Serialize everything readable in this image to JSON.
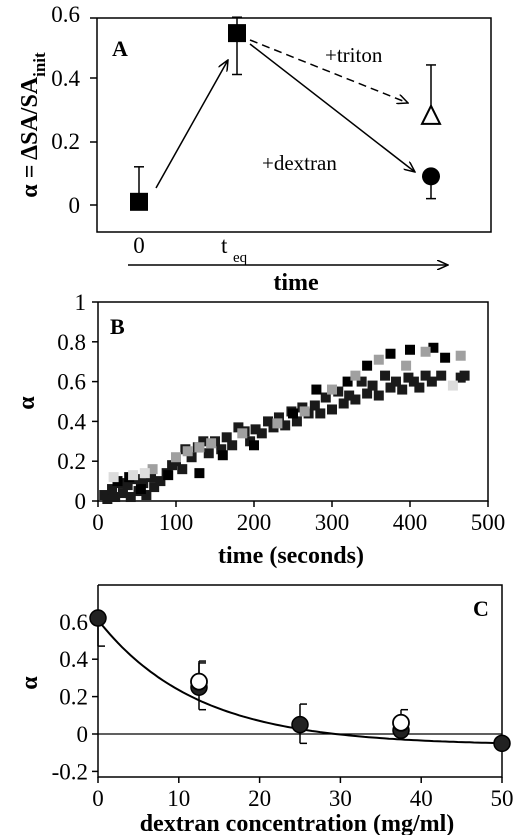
{
  "colors": {
    "black": "#000000",
    "dark": "#1a1a1a",
    "gray": "#a0a0a0",
    "light": "#dcdcdc"
  },
  "chart_data": [
    {
      "panel": "A",
      "type": "scatter",
      "ylabel": "α = ΔSA/SA",
      "ylabel_sub": "init",
      "xlabel": "time",
      "yticks": [
        "0",
        "0.2",
        "0.4",
        "0.6"
      ],
      "xticks": [
        "0",
        "t",
        "eq"
      ],
      "ylim": [
        -0.1,
        0.6
      ],
      "points": [
        {
          "name": "start",
          "y": 0.01,
          "err_hi": 0.12,
          "err_lo": 0.01,
          "marker": "square"
        },
        {
          "name": "teq",
          "y": 0.54,
          "err_hi": 0.59,
          "err_lo": 0.41,
          "marker": "square"
        },
        {
          "name": "triton",
          "y": 0.28,
          "err_hi": 0.44,
          "err_lo": 0.28,
          "marker": "triangle-open"
        },
        {
          "name": "dextran",
          "y": 0.09,
          "err_hi": 0.09,
          "err_lo": 0.02,
          "marker": "circle"
        }
      ],
      "annotations": [
        "+triton",
        "+dextran"
      ]
    },
    {
      "panel": "B",
      "type": "scatter",
      "xlabel": "time (seconds)",
      "ylabel": "α",
      "xlim": [
        0,
        500
      ],
      "ylim": [
        0,
        1
      ],
      "xticks": [
        "0",
        "100",
        "200",
        "300",
        "400",
        "500"
      ],
      "yticks": [
        "0",
        "0.2",
        "0.4",
        "0.6",
        "0.8",
        "1"
      ],
      "series": [
        {
          "color": "dark",
          "points": [
            [
              8,
              0.03
            ],
            [
              12,
              0.01
            ],
            [
              18,
              0.06
            ],
            [
              22,
              0.02
            ],
            [
              28,
              0.09
            ],
            [
              32,
              0.04
            ],
            [
              38,
              0.08
            ],
            [
              42,
              0.02
            ],
            [
              48,
              0.11
            ],
            [
              52,
              0.05
            ],
            [
              58,
              0.09
            ],
            [
              62,
              0.03
            ],
            [
              68,
              0.12
            ],
            [
              72,
              0.07
            ],
            [
              80,
              0.1
            ],
            [
              88,
              0.14
            ],
            [
              95,
              0.18
            ],
            [
              100,
              0.2
            ],
            [
              108,
              0.16
            ],
            [
              112,
              0.26
            ],
            [
              120,
              0.22
            ],
            [
              128,
              0.27
            ],
            [
              135,
              0.3
            ],
            [
              142,
              0.24
            ],
            [
              150,
              0.3
            ],
            [
              158,
              0.26
            ],
            [
              165,
              0.32
            ],
            [
              172,
              0.28
            ],
            [
              180,
              0.37
            ],
            [
              188,
              0.35
            ],
            [
              195,
              0.3
            ],
            [
              202,
              0.36
            ],
            [
              210,
              0.34
            ],
            [
              218,
              0.4
            ],
            [
              225,
              0.37
            ],
            [
              232,
              0.42
            ],
            [
              240,
              0.38
            ],
            [
              248,
              0.45
            ],
            [
              255,
              0.4
            ],
            [
              262,
              0.47
            ],
            [
              270,
              0.44
            ],
            [
              278,
              0.48
            ],
            [
              285,
              0.44
            ],
            [
              292,
              0.52
            ],
            [
              300,
              0.46
            ],
            [
              308,
              0.55
            ],
            [
              315,
              0.49
            ],
            [
              322,
              0.53
            ],
            [
              330,
              0.51
            ],
            [
              338,
              0.6
            ],
            [
              345,
              0.54
            ],
            [
              352,
              0.58
            ],
            [
              360,
              0.53
            ],
            [
              368,
              0.63
            ],
            [
              375,
              0.57
            ],
            [
              382,
              0.6
            ],
            [
              390,
              0.56
            ],
            [
              398,
              0.62
            ],
            [
              405,
              0.6
            ],
            [
              412,
              0.57
            ],
            [
              420,
              0.63
            ],
            [
              428,
              0.6
            ],
            [
              440,
              0.63
            ],
            [
              465,
              0.62
            ],
            [
              470,
              0.63
            ]
          ]
        },
        {
          "color": "black",
          "points": [
            [
              25,
              0.1
            ],
            [
              40,
              0.12
            ],
            [
              55,
              0.06
            ],
            [
              90,
              0.13
            ],
            [
              130,
              0.14
            ],
            [
              160,
              0.23
            ],
            [
              200,
              0.28
            ],
            [
              250,
              0.44
            ],
            [
              280,
              0.56
            ],
            [
              320,
              0.6
            ],
            [
              345,
              0.68
            ],
            [
              375,
              0.74
            ],
            [
              400,
              0.76
            ],
            [
              430,
              0.77
            ],
            [
              445,
              0.72
            ]
          ]
        },
        {
          "color": "gray",
          "points": [
            [
              70,
              0.16
            ],
            [
              100,
              0.22
            ],
            [
              115,
              0.25
            ],
            [
              130,
              0.27
            ],
            [
              145,
              0.29
            ],
            [
              185,
              0.34
            ],
            [
              230,
              0.39
            ],
            [
              265,
              0.45
            ],
            [
              300,
              0.56
            ],
            [
              330,
              0.63
            ],
            [
              360,
              0.71
            ],
            [
              395,
              0.68
            ],
            [
              420,
              0.75
            ],
            [
              465,
              0.73
            ]
          ]
        },
        {
          "color": "light",
          "points": [
            [
              20,
              0.12
            ],
            [
              45,
              0.13
            ],
            [
              60,
              0.14
            ],
            [
              455,
              0.58
            ]
          ]
        }
      ]
    },
    {
      "panel": "C",
      "type": "scatter",
      "xlabel": "dextran concentration (mg/ml)",
      "ylabel": "α",
      "xlim": [
        0,
        50
      ],
      "ylim": [
        -0.2,
        0.7
      ],
      "xticks": [
        "0",
        "10",
        "20",
        "30",
        "40",
        "50"
      ],
      "yticks": [
        "-0.2",
        "0",
        "0.2",
        "0.4",
        "0.6"
      ],
      "fit_curve": {
        "a": 0.67,
        "k": 0.082,
        "c": -0.06
      },
      "series": [
        {
          "name": "filled",
          "marker": "circle-filled",
          "points": [
            [
              0,
              0.62,
              0.62,
              0.47
            ],
            [
              12.5,
              0.25,
              0.38,
              0.13
            ],
            [
              25,
              0.05,
              0.16,
              -0.05
            ],
            [
              37.5,
              0.02,
              0.02,
              0.02
            ],
            [
              50,
              -0.05,
              -0.05,
              -0.05
            ]
          ]
        },
        {
          "name": "open",
          "marker": "circle-open",
          "points": [
            [
              12.5,
              0.28,
              0.39,
              0.28
            ],
            [
              37.5,
              0.06,
              0.13,
              0.06
            ]
          ]
        }
      ]
    }
  ]
}
